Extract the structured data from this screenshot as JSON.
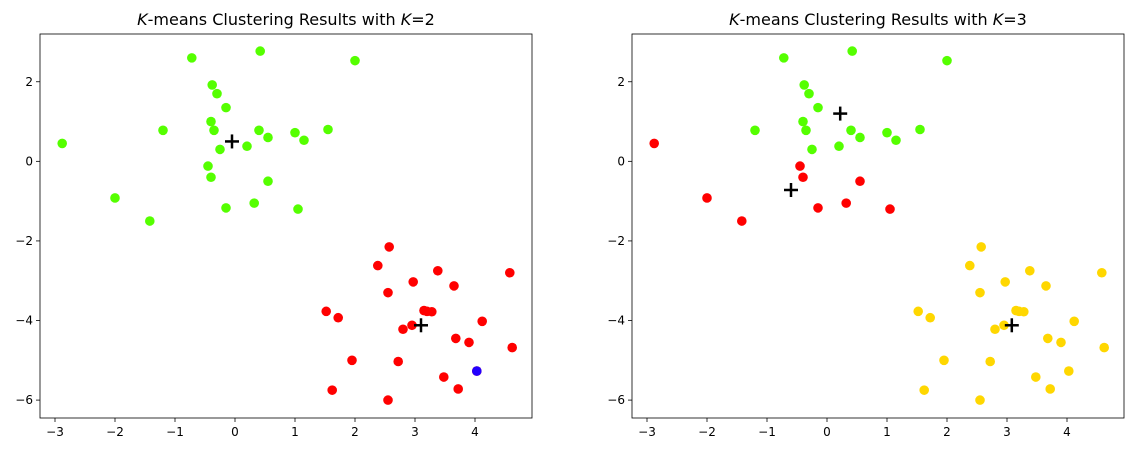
{
  "chart_data": [
    {
      "type": "scatter",
      "title": "K-means Clustering Results with K=2",
      "title_parts": {
        "k_italic": "K",
        "middle": "-means Clustering Results with ",
        "k2_italic": "K",
        "suffix": "=2"
      },
      "xlim": [
        -3.25,
        4.95
      ],
      "ylim": [
        -6.45,
        3.2
      ],
      "xticks": [
        -3,
        -2,
        -1,
        0,
        1,
        2,
        3,
        4
      ],
      "yticks": [
        -6,
        -4,
        -2,
        0,
        2
      ],
      "xtick_labels": [
        "−3",
        "−2",
        "−1",
        "0",
        "1",
        "2",
        "3",
        "4"
      ],
      "ytick_labels": [
        "−6",
        "−4",
        "−2",
        "0",
        "2"
      ],
      "series": [
        {
          "color": "#55ff00",
          "points": [
            [
              -0.72,
              2.6
            ],
            [
              0.42,
              2.77
            ],
            [
              2.0,
              2.53
            ],
            [
              -0.38,
              1.92
            ],
            [
              -0.3,
              1.7
            ],
            [
              -0.15,
              1.35
            ],
            [
              -1.2,
              0.78
            ],
            [
              -0.4,
              1.0
            ],
            [
              -0.35,
              0.78
            ],
            [
              0.4,
              0.78
            ],
            [
              1.0,
              0.72
            ],
            [
              1.55,
              0.8
            ],
            [
              0.55,
              0.6
            ],
            [
              1.15,
              0.53
            ],
            [
              -2.88,
              0.45
            ],
            [
              0.2,
              0.38
            ],
            [
              -0.25,
              0.3
            ],
            [
              -0.45,
              -0.12
            ],
            [
              -0.4,
              -0.4
            ],
            [
              0.55,
              -0.5
            ],
            [
              -2.0,
              -0.92
            ],
            [
              0.32,
              -1.05
            ],
            [
              -0.15,
              -1.17
            ],
            [
              1.05,
              -1.2
            ],
            [
              -1.42,
              -1.5
            ]
          ]
        },
        {
          "color": "#ff0000",
          "points": [
            [
              2.57,
              -2.15
            ],
            [
              2.38,
              -2.62
            ],
            [
              4.58,
              -2.8
            ],
            [
              3.38,
              -2.75
            ],
            [
              2.97,
              -3.03
            ],
            [
              3.65,
              -3.13
            ],
            [
              2.55,
              -3.3
            ],
            [
              1.52,
              -3.77
            ],
            [
              1.72,
              -3.93
            ],
            [
              3.15,
              -3.75
            ],
            [
              3.2,
              -3.77
            ],
            [
              3.28,
              -3.78
            ],
            [
              4.12,
              -4.02
            ],
            [
              2.95,
              -4.12
            ],
            [
              2.8,
              -4.22
            ],
            [
              3.68,
              -4.45
            ],
            [
              3.9,
              -4.55
            ],
            [
              4.62,
              -4.68
            ],
            [
              1.95,
              -5.0
            ],
            [
              2.72,
              -5.03
            ],
            [
              4.03,
              -5.27
            ],
            [
              3.48,
              -5.42
            ],
            [
              1.62,
              -5.75
            ],
            [
              3.72,
              -5.72
            ],
            [
              2.55,
              -6.0
            ]
          ]
        },
        {
          "color": "#2200ff",
          "points": [
            [
              4.03,
              -5.27
            ]
          ]
        }
      ],
      "centroids": [
        [
          -0.05,
          0.5
        ],
        [
          3.1,
          -4.12
        ]
      ]
    },
    {
      "type": "scatter",
      "title": "K-means Clustering Results with K=3",
      "title_parts": {
        "k_italic": "K",
        "middle": "-means Clustering Results with ",
        "k2_italic": "K",
        "suffix": "=3"
      },
      "xlim": [
        -3.25,
        4.95
      ],
      "ylim": [
        -6.45,
        3.2
      ],
      "xticks": [
        -3,
        -2,
        -1,
        0,
        1,
        2,
        3,
        4
      ],
      "yticks": [
        -6,
        -4,
        -2,
        0,
        2
      ],
      "xtick_labels": [
        "−3",
        "−2",
        "−1",
        "0",
        "1",
        "2",
        "3",
        "4"
      ],
      "ytick_labels": [
        "−6",
        "−4",
        "−2",
        "0",
        "2"
      ],
      "series": [
        {
          "color": "#55ff00",
          "points": [
            [
              -0.72,
              2.6
            ],
            [
              0.42,
              2.77
            ],
            [
              2.0,
              2.53
            ],
            [
              -0.38,
              1.92
            ],
            [
              -0.3,
              1.7
            ],
            [
              -0.15,
              1.35
            ],
            [
              -1.2,
              0.78
            ],
            [
              -0.4,
              1.0
            ],
            [
              -0.35,
              0.78
            ],
            [
              0.4,
              0.78
            ],
            [
              1.0,
              0.72
            ],
            [
              1.55,
              0.8
            ],
            [
              0.55,
              0.6
            ],
            [
              1.15,
              0.53
            ],
            [
              0.2,
              0.38
            ],
            [
              -0.25,
              0.3
            ]
          ]
        },
        {
          "color": "#ff0000",
          "points": [
            [
              -2.88,
              0.45
            ],
            [
              -0.45,
              -0.12
            ],
            [
              -0.4,
              -0.4
            ],
            [
              0.55,
              -0.5
            ],
            [
              -2.0,
              -0.92
            ],
            [
              0.32,
              -1.05
            ],
            [
              -0.15,
              -1.17
            ],
            [
              1.05,
              -1.2
            ],
            [
              -1.42,
              -1.5
            ]
          ]
        },
        {
          "color": "#ffd700",
          "points": [
            [
              2.57,
              -2.15
            ],
            [
              2.38,
              -2.62
            ],
            [
              4.58,
              -2.8
            ],
            [
              3.38,
              -2.75
            ],
            [
              2.97,
              -3.03
            ],
            [
              3.65,
              -3.13
            ],
            [
              2.55,
              -3.3
            ],
            [
              1.52,
              -3.77
            ],
            [
              1.72,
              -3.93
            ],
            [
              3.15,
              -3.75
            ],
            [
              3.2,
              -3.77
            ],
            [
              3.28,
              -3.78
            ],
            [
              4.12,
              -4.02
            ],
            [
              2.95,
              -4.12
            ],
            [
              2.8,
              -4.22
            ],
            [
              3.68,
              -4.45
            ],
            [
              3.9,
              -4.55
            ],
            [
              4.62,
              -4.68
            ],
            [
              1.95,
              -5.0
            ],
            [
              2.72,
              -5.03
            ],
            [
              4.03,
              -5.27
            ],
            [
              3.48,
              -5.42
            ],
            [
              1.62,
              -5.75
            ],
            [
              3.72,
              -5.72
            ],
            [
              2.55,
              -6.0
            ]
          ]
        }
      ],
      "centroids": [
        [
          0.22,
          1.2
        ],
        [
          -0.6,
          -0.72
        ],
        [
          3.08,
          -4.12
        ]
      ]
    }
  ]
}
